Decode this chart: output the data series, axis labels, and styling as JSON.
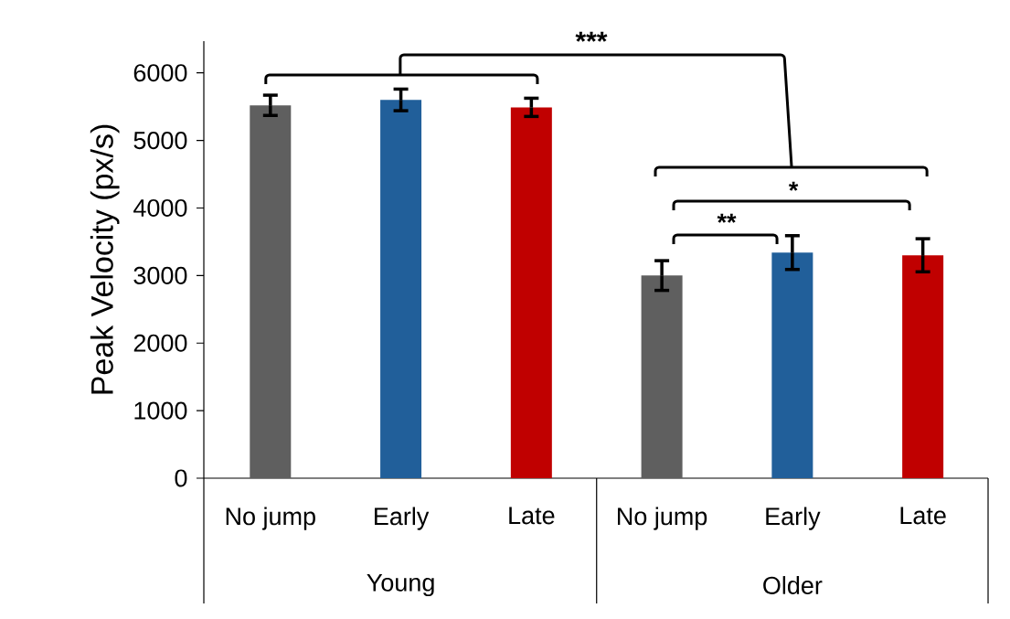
{
  "chart_data": {
    "type": "bar",
    "ylabel": "Peak Velocity (px/s)",
    "categories": [
      "No jump",
      "Early",
      "Late",
      "No jump",
      "Early",
      "Late"
    ],
    "values": [
      5520,
      5600,
      5490,
      3000,
      3340,
      3300
    ],
    "errors": [
      150,
      160,
      135,
      220,
      250,
      245
    ],
    "colors": [
      "#5f5f5f",
      "#215f9a",
      "#c00000",
      "#5f5f5f",
      "#215f9a",
      "#c00000"
    ],
    "ylim": [
      0,
      6470
    ],
    "yticks": [
      0,
      1000,
      2000,
      3000,
      4000,
      5000,
      6000
    ],
    "annotations": [
      "***",
      "**",
      "*",
      "Young",
      "Older"
    ]
  }
}
